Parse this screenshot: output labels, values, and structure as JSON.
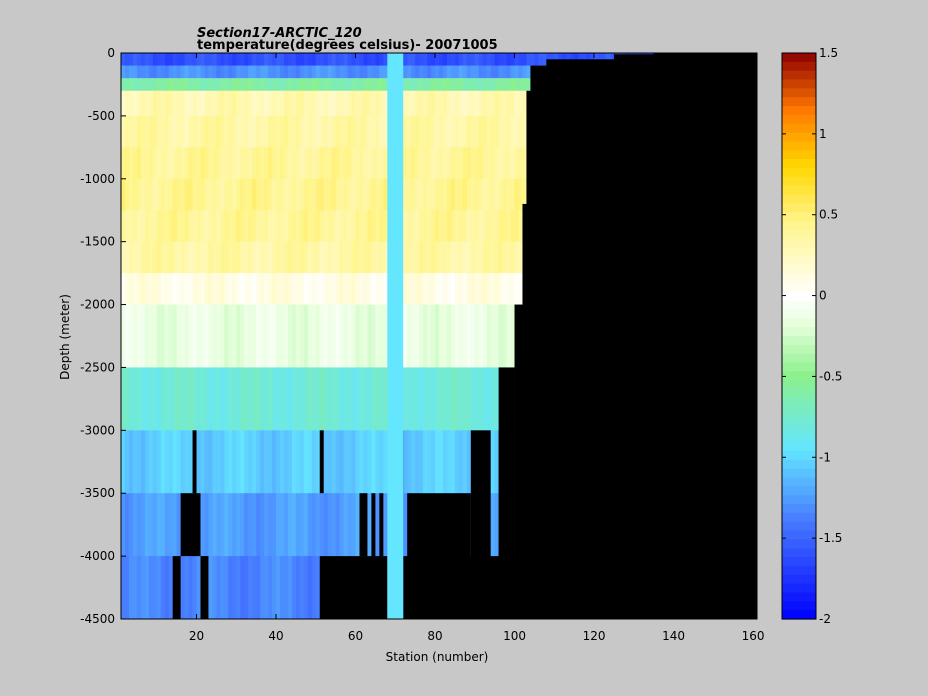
{
  "chart_data": {
    "type": "heatmap",
    "title": "Section17-ARCTIC_120",
    "subtitle": "temperature(degrees  celsius)- 20071005",
    "xlabel": "Station (number)",
    "ylabel": "Depth (meter)",
    "xlim": [
      1,
      161
    ],
    "ylim": [
      -4500,
      0
    ],
    "xticks": [
      20,
      40,
      60,
      80,
      100,
      120,
      140,
      160
    ],
    "yticks": [
      0,
      -500,
      -1000,
      -1500,
      -2000,
      -2500,
      -3000,
      -3500,
      -4000,
      -4500
    ],
    "colorbar": {
      "min": -2,
      "max": 1.5,
      "ticks": [
        1.5,
        1,
        0.5,
        0,
        -0.5,
        -1,
        -1.5,
        -2
      ],
      "colormap": "jet-white"
    },
    "no_data_color": "#000000",
    "depth_layers": [
      {
        "top": 0,
        "bottom": -100
      },
      {
        "top": -100,
        "bottom": -200
      },
      {
        "top": -200,
        "bottom": -300
      },
      {
        "top": -300,
        "bottom": -500
      },
      {
        "top": -500,
        "bottom": -750
      },
      {
        "top": -750,
        "bottom": -1000
      },
      {
        "top": -1000,
        "bottom": -1250
      },
      {
        "top": -1250,
        "bottom": -1500
      },
      {
        "top": -1500,
        "bottom": -1750
      },
      {
        "top": -1750,
        "bottom": -2000
      },
      {
        "top": -2000,
        "bottom": -2500
      },
      {
        "top": -2500,
        "bottom": -3000
      },
      {
        "top": -3000,
        "bottom": -3500
      },
      {
        "top": -3500,
        "bottom": -4000
      },
      {
        "top": -4000,
        "bottom": -4500
      }
    ],
    "layer_temperatures": [
      -1.6,
      -1.3,
      -0.6,
      0.3,
      0.35,
      0.4,
      0.42,
      0.4,
      0.35,
      0.1,
      -0.15,
      -0.8,
      -1.05,
      -1.25,
      -1.35
    ],
    "bottom_profile": [
      {
        "to_station": 100,
        "depth": -4500
      },
      {
        "to_station": 102,
        "depth": -2000
      },
      {
        "to_station": 103,
        "depth": -1200
      },
      {
        "to_station": 104,
        "depth": -300
      },
      {
        "to_station": 108,
        "depth": -100
      },
      {
        "to_station": 125,
        "depth": -50
      },
      {
        "to_station": 135,
        "depth": -10
      },
      {
        "to_station": 161,
        "depth": 0
      }
    ],
    "column_bottoms": [
      {
        "from": 1,
        "to": 96,
        "depth": -2500
      },
      {
        "from": 96,
        "to": 99,
        "depth": -3000
      },
      {
        "from": 89,
        "to": 94,
        "depth": -3000
      },
      {
        "from": 73,
        "to": 89,
        "depth": -3500
      },
      {
        "from": 68,
        "to": 72,
        "depth": -4500
      },
      {
        "from": 72,
        "to": 100,
        "depth": -4000
      }
    ],
    "gaps": [
      {
        "from": 19,
        "to": 20,
        "top": -3000,
        "bottom": -3500
      },
      {
        "from": 16,
        "to": 21,
        "top": -3500,
        "bottom": -4000
      },
      {
        "from": 14,
        "to": 16,
        "top": -4000,
        "bottom": -4500
      },
      {
        "from": 21,
        "to": 23,
        "top": -4000,
        "bottom": -4500
      },
      {
        "from": 51,
        "to": 52,
        "top": -3000,
        "bottom": -3500
      },
      {
        "from": 51,
        "to": 68,
        "top": -4000,
        "bottom": -4500
      },
      {
        "from": 61,
        "to": 63,
        "top": -3500,
        "bottom": -4000
      },
      {
        "from": 64,
        "to": 65,
        "top": -3500,
        "bottom": -4000
      },
      {
        "from": 66,
        "to": 67,
        "top": -3500,
        "bottom": -4000
      },
      {
        "from": 71,
        "to": 72,
        "top": -3000,
        "bottom": -3500
      }
    ],
    "highlight_column": {
      "from": 68,
      "to": 72,
      "temperature": -0.95
    }
  }
}
